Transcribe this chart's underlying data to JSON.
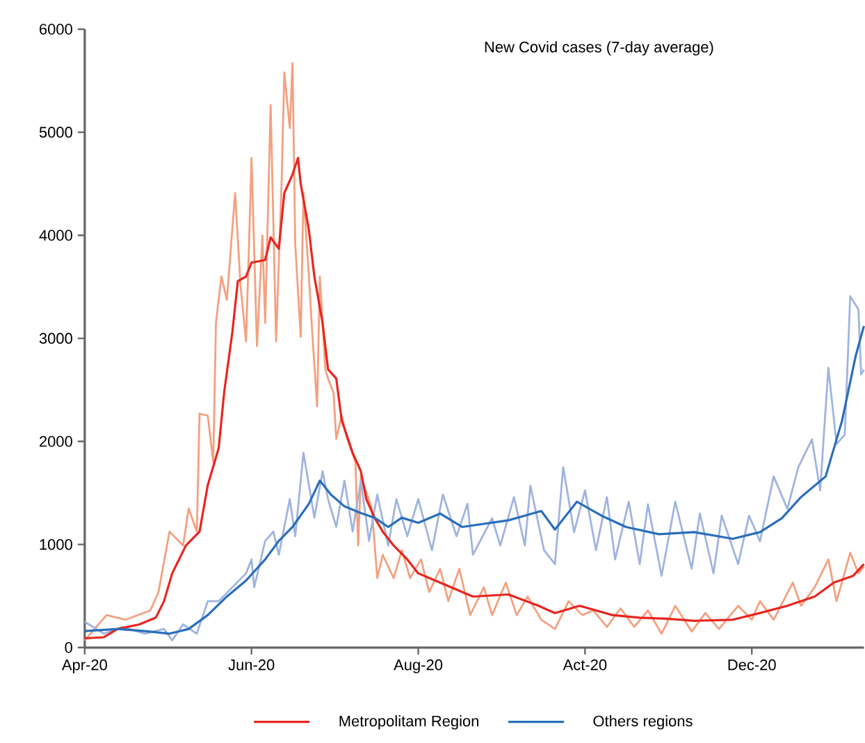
{
  "chart_data": {
    "type": "line",
    "title": "New Covid cases (7-day average)",
    "xlim": [
      "2020-04-01",
      "2021-01-11"
    ],
    "ylim": [
      0,
      6000
    ],
    "xticks": [
      {
        "value": "2020-04-01",
        "label": "Apr-20"
      },
      {
        "value": "2020-06-01",
        "label": "Jun-20"
      },
      {
        "value": "2020-08-01",
        "label": "Aug-20"
      },
      {
        "value": "2020-10-01",
        "label": "Act-20"
      },
      {
        "value": "2020-12-01",
        "label": "Dec-20"
      }
    ],
    "yticks": [
      0,
      1000,
      2000,
      3000,
      4000,
      5000,
      6000
    ],
    "legend": "bottom",
    "series": [
      {
        "color": "#f4a07f",
        "x": [
          "2020-04-01",
          "2020-04-09",
          "2020-04-16",
          "2020-04-25",
          "2020-04-28",
          "2020-05-02",
          "2020-05-07",
          "2020-05-09",
          "2020-05-12",
          "2020-05-13",
          "2020-05-16",
          "2020-05-18",
          "2020-05-19",
          "2020-05-21",
          "2020-05-23",
          "2020-05-26",
          "2020-05-28",
          "2020-05-30",
          "2020-05-31",
          "2020-06-01",
          "2020-06-03",
          "2020-06-05",
          "2020-06-06",
          "2020-06-08",
          "2020-06-10",
          "2020-06-12",
          "2020-06-13",
          "2020-06-15",
          "2020-06-16",
          "2020-06-17",
          "2020-06-19",
          "2020-06-20",
          "2020-06-22",
          "2020-06-23",
          "2020-06-25",
          "2020-06-26",
          "2020-06-28",
          "2020-06-29",
          "2020-07-01",
          "2020-07-02",
          "2020-07-04",
          "2020-07-06",
          "2020-07-09",
          "2020-07-10",
          "2020-07-11",
          "2020-07-15",
          "2020-07-17",
          "2020-07-19",
          "2020-07-23",
          "2020-07-26",
          "2020-07-29",
          "2020-08-02",
          "2020-08-05",
          "2020-08-09",
          "2020-08-12",
          "2020-08-16",
          "2020-08-20",
          "2020-08-25",
          "2020-08-28",
          "2020-09-02",
          "2020-09-06",
          "2020-09-10",
          "2020-09-15",
          "2020-09-20",
          "2020-09-25",
          "2020-09-30",
          "2020-10-04",
          "2020-10-09",
          "2020-10-14",
          "2020-10-19",
          "2020-10-24",
          "2020-10-29",
          "2020-11-03",
          "2020-11-09",
          "2020-11-14",
          "2020-11-19",
          "2020-11-26",
          "2020-12-01",
          "2020-12-04",
          "2020-12-09",
          "2020-12-16",
          "2020-12-19",
          "2020-12-24",
          "2020-12-29",
          "2021-01-01",
          "2021-01-06",
          "2021-01-09",
          "2021-01-11"
        ],
        "values": [
          70,
          315,
          270,
          360,
          540,
          1125,
          990,
          1350,
          1125,
          2270,
          2250,
          1800,
          3150,
          3600,
          3375,
          4410,
          3510,
          2970,
          3825,
          4750,
          2925,
          4000,
          3150,
          5265,
          2970,
          4500,
          5580,
          5040,
          5670,
          3915,
          3015,
          4410,
          3600,
          3150,
          2340,
          3600,
          2700,
          2610,
          2475,
          2025,
          2250,
          2025,
          1800,
          990,
          1665,
          1350,
          675,
          900,
          675,
          945,
          675,
          855,
          540,
          765,
          450,
          765,
          315,
          585,
          315,
          630,
          315,
          495,
          270,
          180,
          450,
          315,
          360,
          200,
          380,
          200,
          360,
          135,
          405,
          155,
          335,
          180,
          405,
          270,
          450,
          270,
          630,
          405,
          585,
          855,
          450,
          920,
          720,
          785
        ]
      },
      {
        "color": "#9fb4e0",
        "x": [
          "2020-04-01",
          "2020-04-08",
          "2020-04-15",
          "2020-04-23",
          "2020-04-30",
          "2020-05-03",
          "2020-05-07",
          "2020-05-12",
          "2020-05-16",
          "2020-05-20",
          "2020-05-25",
          "2020-05-30",
          "2020-06-01",
          "2020-06-02",
          "2020-06-06",
          "2020-06-09",
          "2020-06-11",
          "2020-06-15",
          "2020-06-17",
          "2020-06-20",
          "2020-06-22",
          "2020-06-24",
          "2020-06-27",
          "2020-06-29",
          "2020-07-02",
          "2020-07-05",
          "2020-07-08",
          "2020-07-11",
          "2020-07-14",
          "2020-07-17",
          "2020-07-21",
          "2020-07-24",
          "2020-07-28",
          "2020-08-01",
          "2020-08-06",
          "2020-08-10",
          "2020-08-15",
          "2020-08-19",
          "2020-08-21",
          "2020-08-28",
          "2020-08-31",
          "2020-09-05",
          "2020-09-09",
          "2020-09-11",
          "2020-09-16",
          "2020-09-20",
          "2020-09-23",
          "2020-09-27",
          "2020-10-01",
          "2020-10-05",
          "2020-10-09",
          "2020-10-12",
          "2020-10-17",
          "2020-10-21",
          "2020-10-24",
          "2020-10-29",
          "2020-11-03",
          "2020-11-09",
          "2020-11-12",
          "2020-11-17",
          "2020-11-20",
          "2020-11-26",
          "2020-11-30",
          "2020-12-04",
          "2020-12-09",
          "2020-12-14",
          "2020-12-18",
          "2020-12-23",
          "2020-12-26",
          "2020-12-29",
          "2021-01-01",
          "2021-01-04",
          "2021-01-06",
          "2021-01-09",
          "2021-01-10",
          "2021-01-11"
        ],
        "values": [
          250,
          135,
          200,
          135,
          180,
          70,
          225,
          135,
          450,
          450,
          585,
          720,
          855,
          585,
          1035,
          1125,
          900,
          1440,
          1080,
          1890,
          1575,
          1260,
          1710,
          1440,
          1170,
          1620,
          1125,
          1620,
          1035,
          1485,
          990,
          1440,
          1080,
          1440,
          945,
          1485,
          1080,
          1395,
          900,
          1255,
          990,
          1460,
          990,
          1570,
          945,
          810,
          1750,
          1120,
          1525,
          945,
          1460,
          855,
          1415,
          810,
          1390,
          695,
          1415,
          765,
          1300,
          720,
          1280,
          810,
          1280,
          1030,
          1660,
          1345,
          1750,
          2020,
          1525,
          2715,
          1975,
          2065,
          3410,
          3280,
          2650,
          2695
        ]
      },
      {
        "name": "Metropolitam Region",
        "color": "#e8251f",
        "x": [
          "2020-04-01",
          "2020-04-08",
          "2020-04-13",
          "2020-04-21",
          "2020-04-27",
          "2020-04-30",
          "2020-05-03",
          "2020-05-08",
          "2020-05-13",
          "2020-05-16",
          "2020-05-20",
          "2020-05-22",
          "2020-05-25",
          "2020-05-27",
          "2020-05-30",
          "2020-06-01",
          "2020-06-06",
          "2020-06-08",
          "2020-06-11",
          "2020-06-13",
          "2020-06-16",
          "2020-06-18",
          "2020-06-19",
          "2020-06-22",
          "2020-06-24",
          "2020-06-27",
          "2020-06-29",
          "2020-07-02",
          "2020-07-04",
          "2020-07-08",
          "2020-07-11",
          "2020-07-13",
          "2020-07-16",
          "2020-07-19",
          "2020-07-23",
          "2020-07-28",
          "2020-08-01",
          "2020-08-09",
          "2020-08-21",
          "2020-09-03",
          "2020-09-14",
          "2020-09-20",
          "2020-09-29",
          "2020-10-11",
          "2020-10-21",
          "2020-10-31",
          "2020-11-10",
          "2020-11-24",
          "2020-12-04",
          "2020-12-14",
          "2020-12-24",
          "2020-12-31",
          "2021-01-07",
          "2021-01-11"
        ],
        "values": [
          90,
          100,
          180,
          225,
          290,
          450,
          720,
          990,
          1125,
          1575,
          1935,
          2475,
          3060,
          3555,
          3600,
          3735,
          3760,
          3980,
          3870,
          4410,
          4590,
          4750,
          4500,
          4050,
          3600,
          3150,
          2700,
          2610,
          2205,
          1890,
          1710,
          1440,
          1260,
          1125,
          990,
          855,
          720,
          630,
          495,
          515,
          405,
          335,
          405,
          315,
          290,
          280,
          260,
          270,
          335,
          405,
          495,
          630,
          695,
          810
        ]
      },
      {
        "name": "Others regions",
        "color": "#2a6ebb",
        "x": [
          "2020-04-01",
          "2020-04-13",
          "2020-04-23",
          "2020-05-02",
          "2020-05-09",
          "2020-05-16",
          "2020-05-23",
          "2020-05-30",
          "2020-06-06",
          "2020-06-11",
          "2020-06-16",
          "2020-06-22",
          "2020-06-26",
          "2020-06-30",
          "2020-07-05",
          "2020-07-11",
          "2020-07-16",
          "2020-07-21",
          "2020-07-26",
          "2020-08-01",
          "2020-08-09",
          "2020-08-17",
          "2020-09-03",
          "2020-09-15",
          "2020-09-20",
          "2020-09-28",
          "2020-10-07",
          "2020-10-16",
          "2020-10-28",
          "2020-11-10",
          "2020-11-24",
          "2020-12-04",
          "2020-12-12",
          "2020-12-19",
          "2020-12-28",
          "2021-01-03",
          "2021-01-08",
          "2021-01-11"
        ],
        "values": [
          160,
          180,
          160,
          135,
          180,
          315,
          495,
          650,
          855,
          1035,
          1170,
          1395,
          1620,
          1485,
          1370,
          1305,
          1260,
          1170,
          1260,
          1210,
          1300,
          1170,
          1235,
          1325,
          1145,
          1415,
          1280,
          1170,
          1100,
          1120,
          1055,
          1120,
          1255,
          1460,
          1660,
          2200,
          2830,
          3120
        ]
      }
    ]
  }
}
